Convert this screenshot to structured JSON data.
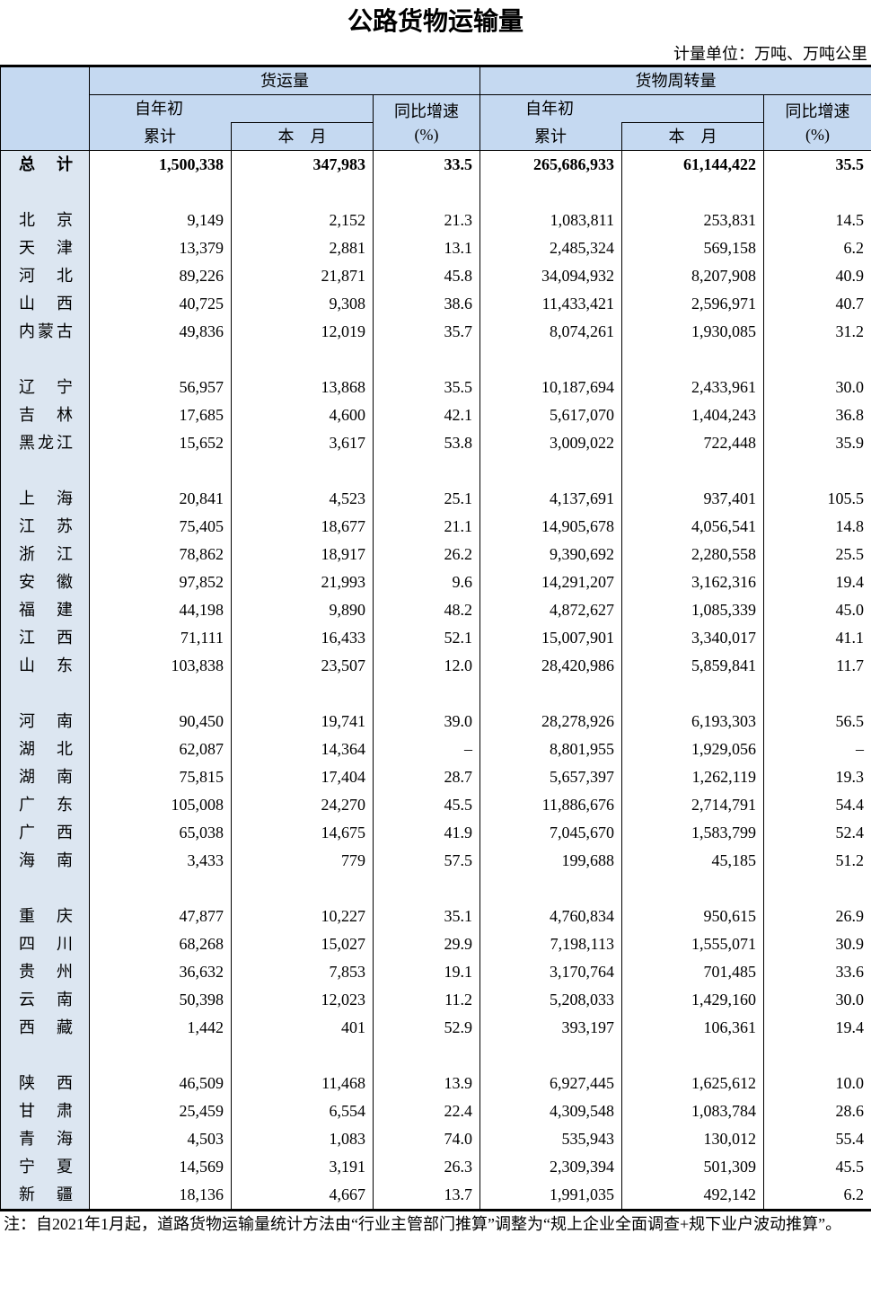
{
  "title": "公路货物运输量",
  "unit": "计量单位：万吨、万吨公里",
  "header": {
    "freight": "货运量",
    "turnover": "货物周转量",
    "ytd_top": "自年初",
    "ytd_bottom": "累计",
    "month": "本　月",
    "growth_top": "同比增速",
    "growth_bottom": "(%)"
  },
  "rows": [
    {
      "name": "总　计",
      "v": [
        "1,500,338",
        "347,983",
        "33.5",
        "265,686,933",
        "61,144,422",
        "35.5"
      ],
      "total": true
    },
    {
      "blank": true
    },
    {
      "name": "北　京",
      "v": [
        "9,149",
        "2,152",
        "21.3",
        "1,083,811",
        "253,831",
        "14.5"
      ]
    },
    {
      "name": "天　津",
      "v": [
        "13,379",
        "2,881",
        "13.1",
        "2,485,324",
        "569,158",
        "6.2"
      ]
    },
    {
      "name": "河　北",
      "v": [
        "89,226",
        "21,871",
        "45.8",
        "34,094,932",
        "8,207,908",
        "40.9"
      ]
    },
    {
      "name": "山　西",
      "v": [
        "40,725",
        "9,308",
        "38.6",
        "11,433,421",
        "2,596,971",
        "40.7"
      ]
    },
    {
      "name": "内蒙古",
      "v": [
        "49,836",
        "12,019",
        "35.7",
        "8,074,261",
        "1,930,085",
        "31.2"
      ]
    },
    {
      "blank": true
    },
    {
      "name": "辽　宁",
      "v": [
        "56,957",
        "13,868",
        "35.5",
        "10,187,694",
        "2,433,961",
        "30.0"
      ]
    },
    {
      "name": "吉　林",
      "v": [
        "17,685",
        "4,600",
        "42.1",
        "5,617,070",
        "1,404,243",
        "36.8"
      ]
    },
    {
      "name": "黑龙江",
      "v": [
        "15,652",
        "3,617",
        "53.8",
        "3,009,022",
        "722,448",
        "35.9"
      ]
    },
    {
      "blank": true
    },
    {
      "name": "上　海",
      "v": [
        "20,841",
        "4,523",
        "25.1",
        "4,137,691",
        "937,401",
        "105.5"
      ]
    },
    {
      "name": "江　苏",
      "v": [
        "75,405",
        "18,677",
        "21.1",
        "14,905,678",
        "4,056,541",
        "14.8"
      ]
    },
    {
      "name": "浙　江",
      "v": [
        "78,862",
        "18,917",
        "26.2",
        "9,390,692",
        "2,280,558",
        "25.5"
      ]
    },
    {
      "name": "安　徽",
      "v": [
        "97,852",
        "21,993",
        "9.6",
        "14,291,207",
        "3,162,316",
        "19.4"
      ]
    },
    {
      "name": "福　建",
      "v": [
        "44,198",
        "9,890",
        "48.2",
        "4,872,627",
        "1,085,339",
        "45.0"
      ]
    },
    {
      "name": "江　西",
      "v": [
        "71,111",
        "16,433",
        "52.1",
        "15,007,901",
        "3,340,017",
        "41.1"
      ]
    },
    {
      "name": "山　东",
      "v": [
        "103,838",
        "23,507",
        "12.0",
        "28,420,986",
        "5,859,841",
        "11.7"
      ]
    },
    {
      "blank": true
    },
    {
      "name": "河　南",
      "v": [
        "90,450",
        "19,741",
        "39.0",
        "28,278,926",
        "6,193,303",
        "56.5"
      ]
    },
    {
      "name": "湖　北",
      "v": [
        "62,087",
        "14,364",
        "–",
        "8,801,955",
        "1,929,056",
        "–"
      ]
    },
    {
      "name": "湖　南",
      "v": [
        "75,815",
        "17,404",
        "28.7",
        "5,657,397",
        "1,262,119",
        "19.3"
      ]
    },
    {
      "name": "广　东",
      "v": [
        "105,008",
        "24,270",
        "45.5",
        "11,886,676",
        "2,714,791",
        "54.4"
      ]
    },
    {
      "name": "广　西",
      "v": [
        "65,038",
        "14,675",
        "41.9",
        "7,045,670",
        "1,583,799",
        "52.4"
      ]
    },
    {
      "name": "海　南",
      "v": [
        "3,433",
        "779",
        "57.5",
        "199,688",
        "45,185",
        "51.2"
      ]
    },
    {
      "blank": true
    },
    {
      "name": "重　庆",
      "v": [
        "47,877",
        "10,227",
        "35.1",
        "4,760,834",
        "950,615",
        "26.9"
      ]
    },
    {
      "name": "四　川",
      "v": [
        "68,268",
        "15,027",
        "29.9",
        "7,198,113",
        "1,555,071",
        "30.9"
      ]
    },
    {
      "name": "贵　州",
      "v": [
        "36,632",
        "7,853",
        "19.1",
        "3,170,764",
        "701,485",
        "33.6"
      ]
    },
    {
      "name": "云　南",
      "v": [
        "50,398",
        "12,023",
        "11.2",
        "5,208,033",
        "1,429,160",
        "30.0"
      ]
    },
    {
      "name": "西　藏",
      "v": [
        "1,442",
        "401",
        "52.9",
        "393,197",
        "106,361",
        "19.4"
      ]
    },
    {
      "blank": true
    },
    {
      "name": "陕　西",
      "v": [
        "46,509",
        "11,468",
        "13.9",
        "6,927,445",
        "1,625,612",
        "10.0"
      ]
    },
    {
      "name": "甘　肃",
      "v": [
        "25,459",
        "6,554",
        "22.4",
        "4,309,548",
        "1,083,784",
        "28.6"
      ]
    },
    {
      "name": "青　海",
      "v": [
        "4,503",
        "1,083",
        "74.0",
        "535,943",
        "130,012",
        "55.4"
      ]
    },
    {
      "name": "宁　夏",
      "v": [
        "14,569",
        "3,191",
        "26.3",
        "2,309,394",
        "501,309",
        "45.5"
      ]
    },
    {
      "name": "新　疆",
      "v": [
        "18,136",
        "4,667",
        "13.7",
        "1,991,035",
        "492,142",
        "6.2"
      ]
    }
  ],
  "note": "注：自2021年1月起，道路货物运输量统计方法由“行业主管部门推算”调整为“规上企业全面调查+规下业户波动推算”。",
  "colors": {
    "header_bg": "#c5d9f1",
    "name_col_bg": "#dce6f1"
  }
}
